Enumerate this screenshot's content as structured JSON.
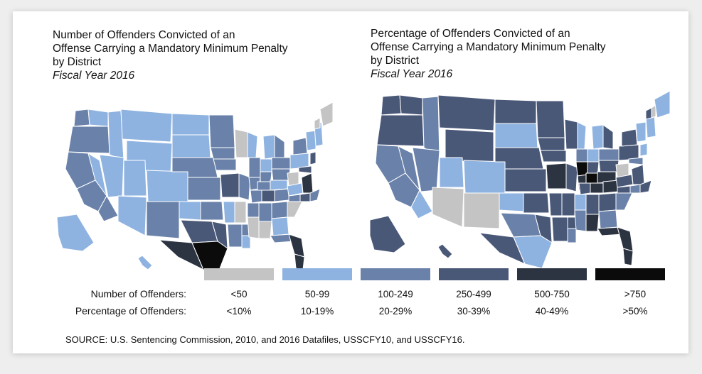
{
  "titles": {
    "left": {
      "line1": "Number of Offenders Convicted of an",
      "line2": "Offense Carrying a Mandatory Minimum Penalty",
      "line3": "by District",
      "fiscal_year": "Fiscal Year 2016"
    },
    "right": {
      "line1": "Percentage of Offenders Convicted of an",
      "line2": "Offense Carrying a Mandatory Minimum Penalty",
      "line3": "by District",
      "fiscal_year": "Fiscal Year 2016"
    }
  },
  "legend": {
    "colors": [
      "#c4c4c4",
      "#8fb3e0",
      "#6a82aa",
      "#4a5878",
      "#2c3442",
      "#0b0b0b"
    ],
    "number_label": "Number of Offenders:",
    "percentage_label": "Percentage of Offenders:",
    "number_ranges": [
      "<50",
      "50-99",
      "100-249",
      "250-499",
      "500-750",
      ">750"
    ],
    "percentage_ranges": [
      "<10%",
      "10-19%",
      "20-29%",
      "30-39%",
      "40-49%",
      ">50%"
    ]
  },
  "source": "SOURCE: U.S. Sentencing Commission, 2010, and 2016 Datafiles, USSCFY10,  and USSCFY16."
}
